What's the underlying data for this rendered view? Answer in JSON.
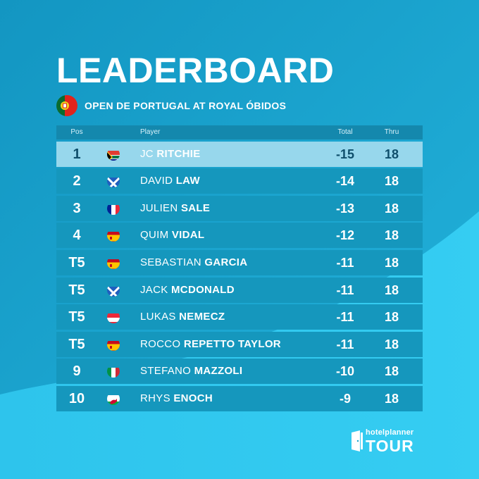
{
  "header": {
    "title": "LEADERBOARD",
    "event_name": "OPEN DE PORTUGAL AT ROYAL ÓBIDOS",
    "event_flag": "portugal-flag-icon"
  },
  "columns": {
    "pos": "Pos",
    "player": "Player",
    "total": "Total",
    "thru": "Thru"
  },
  "rows": [
    {
      "pos": "1",
      "first": "JC",
      "last": "RITCHIE",
      "total": "-15",
      "thru": "18",
      "flag": "south-africa"
    },
    {
      "pos": "2",
      "first": "DAVID",
      "last": "LAW",
      "total": "-14",
      "thru": "18",
      "flag": "scotland"
    },
    {
      "pos": "3",
      "first": "JULIEN",
      "last": "SALE",
      "total": "-13",
      "thru": "18",
      "flag": "france"
    },
    {
      "pos": "4",
      "first": "QUIM",
      "last": "VIDAL",
      "total": "-12",
      "thru": "18",
      "flag": "spain"
    },
    {
      "pos": "T5",
      "first": "SEBASTIAN",
      "last": "GARCIA",
      "total": "-11",
      "thru": "18",
      "flag": "spain"
    },
    {
      "pos": "T5",
      "first": "JACK",
      "last": "MCDONALD",
      "total": "-11",
      "thru": "18",
      "flag": "scotland"
    },
    {
      "pos": "T5",
      "first": "LUKAS",
      "last": "NEMECZ",
      "total": "-11",
      "thru": "18",
      "flag": "austria"
    },
    {
      "pos": "T5",
      "first": "ROCCO",
      "last": "REPETTO TAYLOR",
      "total": "-11",
      "thru": "18",
      "flag": "spain"
    },
    {
      "pos": "9",
      "first": "STEFANO",
      "last": "MAZZOLI",
      "total": "-10",
      "thru": "18",
      "flag": "italy"
    },
    {
      "pos": "10",
      "first": "RHYS",
      "last": "ENOCH",
      "total": "-9",
      "thru": "18",
      "flag": "wales"
    }
  ],
  "logo": {
    "top": "hotelplanner",
    "bottom": "TOUR"
  },
  "colors": {
    "background": "#1aa3cd",
    "row": "#1597bd",
    "leader_row": "#97d7ec",
    "header_row": "#1488ad"
  }
}
